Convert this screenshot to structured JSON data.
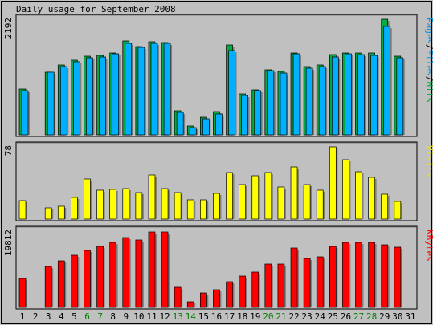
{
  "chart_data": {
    "type": "bar",
    "title": "Daily usage for September 2008",
    "categories": [
      "1",
      "2",
      "3",
      "4",
      "5",
      "6",
      "7",
      "8",
      "9",
      "10",
      "11",
      "12",
      "13",
      "14",
      "15",
      "16",
      "17",
      "18",
      "19",
      "20",
      "21",
      "22",
      "23",
      "24",
      "25",
      "26",
      "27",
      "28",
      "29",
      "30",
      "31"
    ],
    "weekend_days": [
      "6",
      "7",
      "13",
      "14",
      "20",
      "21",
      "27",
      "28"
    ],
    "colors": {
      "background": "#c0c0c0",
      "panel": "#c0c0c0",
      "pages": "#00aa44",
      "files": "#00b0ff",
      "visits": "#ffff00",
      "kbytes": "#ff0000",
      "weekend_label": "#008000",
      "weekday_label": "#000000"
    },
    "panels": [
      {
        "id": "hits",
        "ymax_label": "2192",
        "legend": [
          {
            "text": "Pages",
            "color": "#0090e0"
          },
          {
            "text": "/",
            "color": "#000000"
          },
          {
            "text": "Files",
            "color": "#0090e0"
          },
          {
            "text": "/",
            "color": "#000000"
          },
          {
            "text": "Hits",
            "color": "#00aa44"
          }
        ],
        "ymax": 2192,
        "series": [
          {
            "name": "Hits",
            "values": [
              870,
              0,
              1190,
              1320,
              1410,
              1490,
              1500,
              1550,
              1780,
              1680,
              1760,
              1750,
              450,
              160,
              330,
              440,
              1700,
              770,
              850,
              1240,
              1200,
              1550,
              1290,
              1330,
              1520,
              1550,
              1560,
              1560,
              2192,
              1490
            ]
          },
          {
            "name": "Files",
            "values": [
              840,
              0,
              1180,
              1300,
              1380,
              1460,
              1480,
              1530,
              1740,
              1660,
              1740,
              1730,
              430,
              130,
              300,
              400,
              1600,
              740,
              840,
              1220,
              1170,
              1530,
              1260,
              1300,
              1470,
              1530,
              1520,
              1500,
              2050,
              1460
            ]
          }
        ]
      },
      {
        "id": "visits",
        "ymax_label": "78",
        "legend": [
          {
            "text": "Visits",
            "color": "#e6e600"
          }
        ],
        "ymax": 78,
        "series": [
          {
            "name": "Visits",
            "values": [
              20,
              0,
              12,
              14,
              23,
              43,
              31,
              32,
              33,
              29,
              48,
              33,
              29,
              21,
              21,
              28,
              50,
              37,
              47,
              50,
              35,
              56,
              37,
              31,
              78,
              64,
              51,
              45,
              27,
              19
            ]
          }
        ]
      },
      {
        "id": "kbytes",
        "ymax_label": "19812",
        "legend": [
          {
            "text": "KBytes",
            "color": "#ff0000"
          }
        ],
        "ymax": 19812,
        "series": [
          {
            "name": "KBytes",
            "values": [
              7600,
              0,
              10600,
              12200,
              13600,
              14800,
              15900,
              16900,
              18100,
              17600,
              19500,
              19500,
              5300,
              1500,
              3700,
              4600,
              6700,
              8100,
              9200,
              11300,
              11300,
              15500,
              12700,
              13200,
              15900,
              16900,
              16900,
              16900,
              16200,
              15700
            ]
          }
        ]
      }
    ]
  }
}
